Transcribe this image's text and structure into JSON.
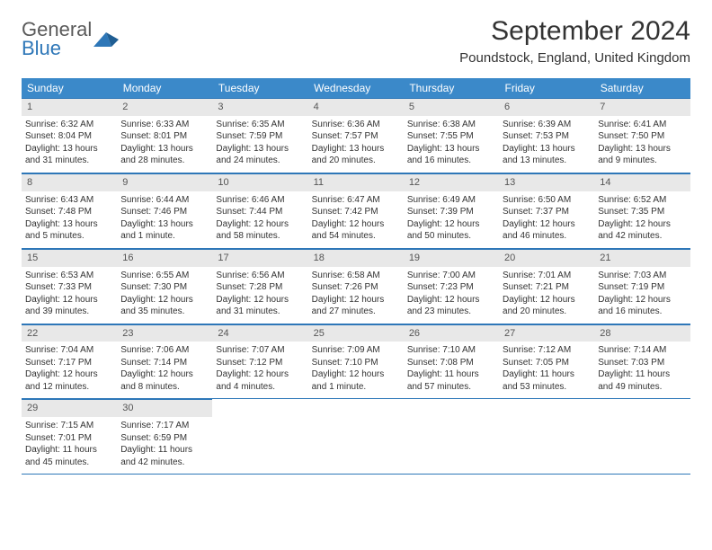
{
  "brand": {
    "word1": "General",
    "word2": "Blue",
    "logo_fill": "#2e77b8",
    "logo_text_gray": "#5a5a5a"
  },
  "header": {
    "title": "September 2024",
    "location": "Poundstock, England, United Kingdom"
  },
  "colors": {
    "header_bg": "#3b89c9",
    "header_text": "#ffffff",
    "rule": "#2e77b8",
    "daynum_bg": "#e8e8e8",
    "text": "#333333"
  },
  "weekdays": [
    "Sunday",
    "Monday",
    "Tuesday",
    "Wednesday",
    "Thursday",
    "Friday",
    "Saturday"
  ],
  "weeks": [
    [
      {
        "n": "1",
        "sr": "Sunrise: 6:32 AM",
        "ss": "Sunset: 8:04 PM",
        "d1": "Daylight: 13 hours",
        "d2": "and 31 minutes."
      },
      {
        "n": "2",
        "sr": "Sunrise: 6:33 AM",
        "ss": "Sunset: 8:01 PM",
        "d1": "Daylight: 13 hours",
        "d2": "and 28 minutes."
      },
      {
        "n": "3",
        "sr": "Sunrise: 6:35 AM",
        "ss": "Sunset: 7:59 PM",
        "d1": "Daylight: 13 hours",
        "d2": "and 24 minutes."
      },
      {
        "n": "4",
        "sr": "Sunrise: 6:36 AM",
        "ss": "Sunset: 7:57 PM",
        "d1": "Daylight: 13 hours",
        "d2": "and 20 minutes."
      },
      {
        "n": "5",
        "sr": "Sunrise: 6:38 AM",
        "ss": "Sunset: 7:55 PM",
        "d1": "Daylight: 13 hours",
        "d2": "and 16 minutes."
      },
      {
        "n": "6",
        "sr": "Sunrise: 6:39 AM",
        "ss": "Sunset: 7:53 PM",
        "d1": "Daylight: 13 hours",
        "d2": "and 13 minutes."
      },
      {
        "n": "7",
        "sr": "Sunrise: 6:41 AM",
        "ss": "Sunset: 7:50 PM",
        "d1": "Daylight: 13 hours",
        "d2": "and 9 minutes."
      }
    ],
    [
      {
        "n": "8",
        "sr": "Sunrise: 6:43 AM",
        "ss": "Sunset: 7:48 PM",
        "d1": "Daylight: 13 hours",
        "d2": "and 5 minutes."
      },
      {
        "n": "9",
        "sr": "Sunrise: 6:44 AM",
        "ss": "Sunset: 7:46 PM",
        "d1": "Daylight: 13 hours",
        "d2": "and 1 minute."
      },
      {
        "n": "10",
        "sr": "Sunrise: 6:46 AM",
        "ss": "Sunset: 7:44 PM",
        "d1": "Daylight: 12 hours",
        "d2": "and 58 minutes."
      },
      {
        "n": "11",
        "sr": "Sunrise: 6:47 AM",
        "ss": "Sunset: 7:42 PM",
        "d1": "Daylight: 12 hours",
        "d2": "and 54 minutes."
      },
      {
        "n": "12",
        "sr": "Sunrise: 6:49 AM",
        "ss": "Sunset: 7:39 PM",
        "d1": "Daylight: 12 hours",
        "d2": "and 50 minutes."
      },
      {
        "n": "13",
        "sr": "Sunrise: 6:50 AM",
        "ss": "Sunset: 7:37 PM",
        "d1": "Daylight: 12 hours",
        "d2": "and 46 minutes."
      },
      {
        "n": "14",
        "sr": "Sunrise: 6:52 AM",
        "ss": "Sunset: 7:35 PM",
        "d1": "Daylight: 12 hours",
        "d2": "and 42 minutes."
      }
    ],
    [
      {
        "n": "15",
        "sr": "Sunrise: 6:53 AM",
        "ss": "Sunset: 7:33 PM",
        "d1": "Daylight: 12 hours",
        "d2": "and 39 minutes."
      },
      {
        "n": "16",
        "sr": "Sunrise: 6:55 AM",
        "ss": "Sunset: 7:30 PM",
        "d1": "Daylight: 12 hours",
        "d2": "and 35 minutes."
      },
      {
        "n": "17",
        "sr": "Sunrise: 6:56 AM",
        "ss": "Sunset: 7:28 PM",
        "d1": "Daylight: 12 hours",
        "d2": "and 31 minutes."
      },
      {
        "n": "18",
        "sr": "Sunrise: 6:58 AM",
        "ss": "Sunset: 7:26 PM",
        "d1": "Daylight: 12 hours",
        "d2": "and 27 minutes."
      },
      {
        "n": "19",
        "sr": "Sunrise: 7:00 AM",
        "ss": "Sunset: 7:23 PM",
        "d1": "Daylight: 12 hours",
        "d2": "and 23 minutes."
      },
      {
        "n": "20",
        "sr": "Sunrise: 7:01 AM",
        "ss": "Sunset: 7:21 PM",
        "d1": "Daylight: 12 hours",
        "d2": "and 20 minutes."
      },
      {
        "n": "21",
        "sr": "Sunrise: 7:03 AM",
        "ss": "Sunset: 7:19 PM",
        "d1": "Daylight: 12 hours",
        "d2": "and 16 minutes."
      }
    ],
    [
      {
        "n": "22",
        "sr": "Sunrise: 7:04 AM",
        "ss": "Sunset: 7:17 PM",
        "d1": "Daylight: 12 hours",
        "d2": "and 12 minutes."
      },
      {
        "n": "23",
        "sr": "Sunrise: 7:06 AM",
        "ss": "Sunset: 7:14 PM",
        "d1": "Daylight: 12 hours",
        "d2": "and 8 minutes."
      },
      {
        "n": "24",
        "sr": "Sunrise: 7:07 AM",
        "ss": "Sunset: 7:12 PM",
        "d1": "Daylight: 12 hours",
        "d2": "and 4 minutes."
      },
      {
        "n": "25",
        "sr": "Sunrise: 7:09 AM",
        "ss": "Sunset: 7:10 PM",
        "d1": "Daylight: 12 hours",
        "d2": "and 1 minute."
      },
      {
        "n": "26",
        "sr": "Sunrise: 7:10 AM",
        "ss": "Sunset: 7:08 PM",
        "d1": "Daylight: 11 hours",
        "d2": "and 57 minutes."
      },
      {
        "n": "27",
        "sr": "Sunrise: 7:12 AM",
        "ss": "Sunset: 7:05 PM",
        "d1": "Daylight: 11 hours",
        "d2": "and 53 minutes."
      },
      {
        "n": "28",
        "sr": "Sunrise: 7:14 AM",
        "ss": "Sunset: 7:03 PM",
        "d1": "Daylight: 11 hours",
        "d2": "and 49 minutes."
      }
    ],
    [
      {
        "n": "29",
        "sr": "Sunrise: 7:15 AM",
        "ss": "Sunset: 7:01 PM",
        "d1": "Daylight: 11 hours",
        "d2": "and 45 minutes."
      },
      {
        "n": "30",
        "sr": "Sunrise: 7:17 AM",
        "ss": "Sunset: 6:59 PM",
        "d1": "Daylight: 11 hours",
        "d2": "and 42 minutes."
      },
      null,
      null,
      null,
      null,
      null
    ]
  ]
}
